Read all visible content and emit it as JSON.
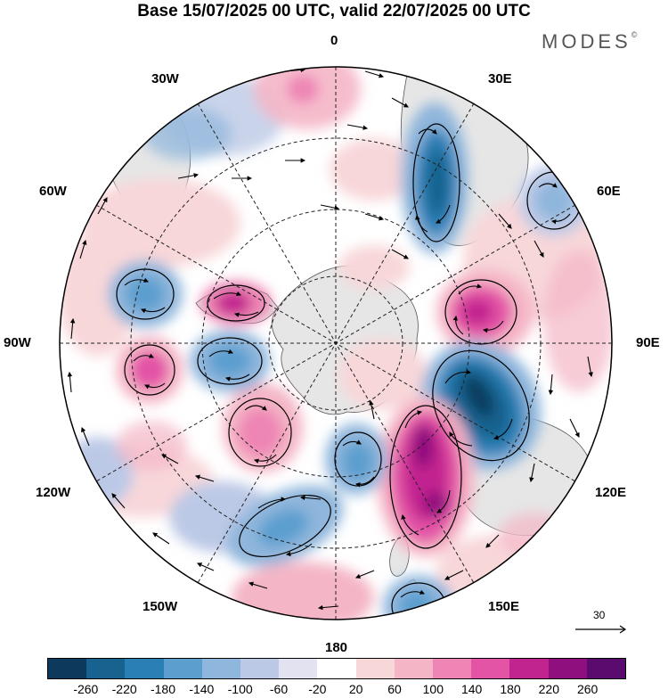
{
  "title": "Base 15/07/2025 00 UTC, valid 22/07/2025 00 UTC",
  "brand": "MODES",
  "brand_mark": "©",
  "longitude_labels": {
    "lon_0": "0",
    "lon_30e": "30E",
    "lon_60e": "60E",
    "lon_90e": "90E",
    "lon_120e": "120E",
    "lon_150e": "150E",
    "lon_180": "180",
    "lon_150w": "150W",
    "lon_120w": "120W",
    "lon_90w": "90W",
    "lon_60w": "60W",
    "lon_30w": "30W"
  },
  "reference_vector": {
    "label": "30"
  },
  "colorbar": {
    "ticks": [
      "-260",
      "-220",
      "-180",
      "-140",
      "-100",
      "-60",
      "-20",
      "20",
      "60",
      "100",
      "140",
      "180",
      "220",
      "260"
    ],
    "colors": [
      "#0d3a5c",
      "#17628f",
      "#2a7fb5",
      "#5c9fcf",
      "#8fb6dc",
      "#bcc9e6",
      "#e2e2f0",
      "#ffffff",
      "#f8d7d9",
      "#f4b6c6",
      "#ee85b4",
      "#e353a6",
      "#c2248f",
      "#8e0f7d",
      "#5a0c6e"
    ]
  },
  "map": {
    "projection": "south-polar-stereographic",
    "field": "geopotential height anomaly with wind vectors",
    "anomaly_features": [
      {
        "sign": "positive",
        "sector": "120E-150E",
        "level": 220
      },
      {
        "sign": "negative",
        "sector": "90E-110E",
        "level": -260
      },
      {
        "sign": "positive",
        "sector": "80E",
        "level": 180
      },
      {
        "sign": "negative",
        "sector": "30E",
        "level": -180
      },
      {
        "sign": "negative",
        "sector": "60E",
        "level": -100
      },
      {
        "sign": "negative",
        "sector": "75W",
        "level": -140
      },
      {
        "sign": "positive",
        "sector": "70W",
        "level": 180
      },
      {
        "sign": "negative",
        "sector": "100W",
        "level": -140
      },
      {
        "sign": "positive",
        "sector": "100W",
        "level": 140
      },
      {
        "sign": "positive",
        "sector": "130W",
        "level": 100
      },
      {
        "sign": "negative",
        "sector": "160W",
        "level": -140
      },
      {
        "sign": "negative",
        "sector": "170E",
        "level": -140
      },
      {
        "sign": "negative",
        "sector": "150E",
        "level": -140
      },
      {
        "sign": "positive",
        "sector": "10W",
        "level": 60
      }
    ]
  }
}
